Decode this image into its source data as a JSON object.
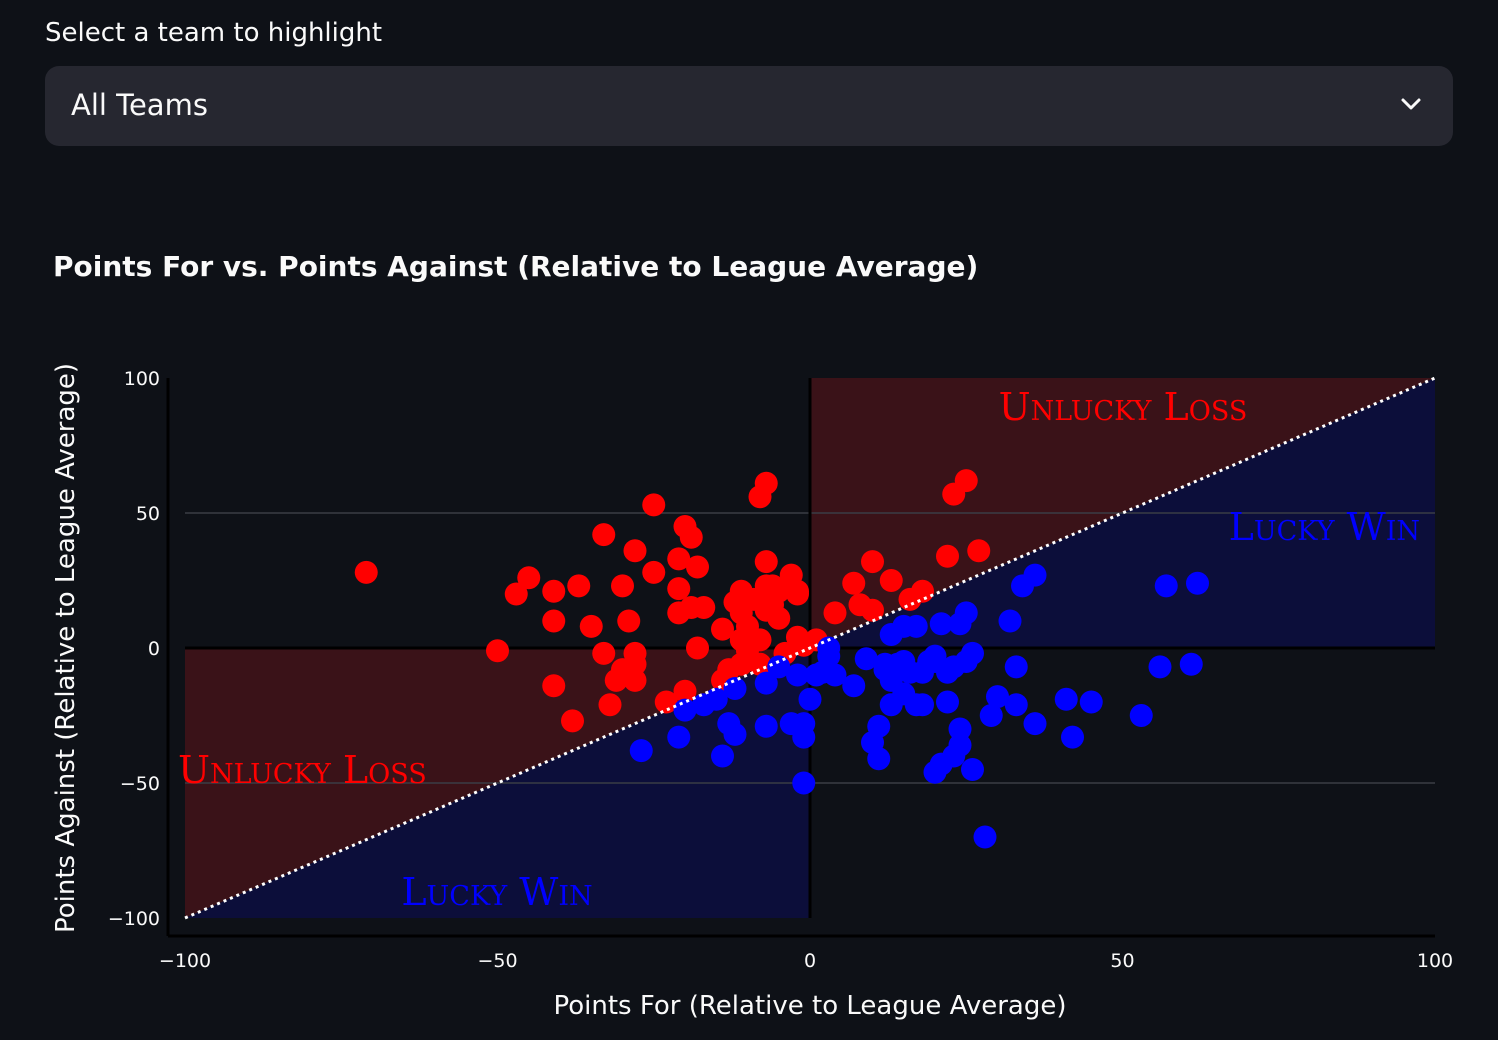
{
  "select": {
    "label": "Select a team to highlight",
    "value": "All Teams",
    "icon": "chevron-down-icon"
  },
  "chart_data": {
    "type": "scatter",
    "title": "Points For vs. Points Against (Relative to League Average)",
    "xlabel": "Points For (Relative to League Average)",
    "ylabel": "Points Against (Relative to League Average)",
    "xlim": [
      -100,
      100
    ],
    "ylim": [
      -100,
      100
    ],
    "xticks": [
      -100,
      -50,
      0,
      50,
      100
    ],
    "yticks": [
      -100,
      -50,
      0,
      50,
      100
    ],
    "tick_labels_x": [
      "−100",
      "−50",
      "0",
      "50",
      "100"
    ],
    "tick_labels_y": [
      "−100",
      "−50",
      "0",
      "50",
      "100"
    ],
    "grid": true,
    "diagonal_line": "y = x (dotted)",
    "regions": [
      {
        "label": "Unlucky Loss",
        "color": "#ff0000"
      },
      {
        "label": "Lucky Win",
        "color": "#0000ff"
      },
      {
        "label": "Unlucky Loss",
        "color": "#ff0000"
      },
      {
        "label": "Lucky Win",
        "color": "#0000ff"
      }
    ],
    "colors": {
      "loss": "#ff0000",
      "win": "#0000ff",
      "loss_region": "#3a1218",
      "win_region": "#0c0e3a",
      "background": "#0e1117"
    },
    "series": [
      {
        "color": "#ff0000",
        "points": [
          [
            -71,
            28
          ],
          [
            -50,
            -1
          ],
          [
            -47,
            20
          ],
          [
            -45,
            26
          ],
          [
            -41,
            21
          ],
          [
            -41,
            10
          ],
          [
            -41,
            -14
          ],
          [
            -38,
            -27
          ],
          [
            -37,
            23
          ],
          [
            -35,
            8
          ],
          [
            -33,
            -2
          ],
          [
            -33,
            42
          ],
          [
            -32,
            -21
          ],
          [
            -31,
            -12
          ],
          [
            -30,
            -8
          ],
          [
            -30,
            23
          ],
          [
            -29,
            10
          ],
          [
            -28,
            -12
          ],
          [
            -28,
            -6
          ],
          [
            -28,
            -2
          ],
          [
            -28,
            36
          ],
          [
            -25,
            53
          ],
          [
            -25,
            28
          ],
          [
            -23,
            -20
          ],
          [
            -21,
            13
          ],
          [
            -21,
            22
          ],
          [
            -21,
            33
          ],
          [
            -20,
            45
          ],
          [
            -20,
            -16
          ],
          [
            -19,
            15
          ],
          [
            -19,
            41
          ],
          [
            -18,
            0
          ],
          [
            -18,
            30
          ],
          [
            -17,
            15
          ],
          [
            -14,
            -12
          ],
          [
            -14,
            7
          ],
          [
            -13,
            -8
          ],
          [
            -12,
            17
          ],
          [
            -11,
            -6
          ],
          [
            -11,
            13
          ],
          [
            -11,
            21
          ],
          [
            -11,
            3
          ],
          [
            -10,
            8
          ],
          [
            -10,
            -4
          ],
          [
            -10,
            -1
          ],
          [
            -9,
            18
          ],
          [
            -8,
            56
          ],
          [
            -8,
            -6
          ],
          [
            -8,
            3
          ],
          [
            -7,
            32
          ],
          [
            -7,
            61
          ],
          [
            -7,
            23
          ],
          [
            -7,
            14
          ],
          [
            -6,
            21
          ],
          [
            -6,
            16
          ],
          [
            -6,
            23
          ],
          [
            -5,
            11
          ],
          [
            -5,
            21
          ],
          [
            -4,
            -2
          ],
          [
            -3,
            27
          ],
          [
            -2,
            4
          ],
          [
            -2,
            21
          ],
          [
            -2,
            20
          ],
          [
            -1,
            1
          ],
          [
            1,
            3
          ],
          [
            4,
            13
          ],
          [
            7,
            24
          ],
          [
            8,
            16
          ],
          [
            10,
            32
          ],
          [
            10,
            14
          ],
          [
            13,
            25
          ],
          [
            16,
            18
          ],
          [
            18,
            21
          ],
          [
            22,
            34
          ],
          [
            23,
            57
          ],
          [
            25,
            62
          ],
          [
            27,
            36
          ]
        ]
      },
      {
        "color": "#0000ff",
        "points": [
          [
            -27,
            -38
          ],
          [
            -21,
            -33
          ],
          [
            -20,
            -23
          ],
          [
            -17,
            -21
          ],
          [
            -15,
            -19
          ],
          [
            -14,
            -40
          ],
          [
            -13,
            -28
          ],
          [
            -12,
            -32
          ],
          [
            -12,
            -15
          ],
          [
            -7,
            -13
          ],
          [
            -7,
            -29
          ],
          [
            -5,
            -7
          ],
          [
            -3,
            -28
          ],
          [
            -2,
            -10
          ],
          [
            -1,
            -28
          ],
          [
            -1,
            -33
          ],
          [
            -1,
            -50
          ],
          [
            0,
            -19
          ],
          [
            1,
            -10
          ],
          [
            2,
            -9
          ],
          [
            3,
            -3
          ],
          [
            3,
            0
          ],
          [
            4,
            -10
          ],
          [
            7,
            -14
          ],
          [
            9,
            -4
          ],
          [
            10,
            -35
          ],
          [
            11,
            -41
          ],
          [
            11,
            -29
          ],
          [
            12,
            -6
          ],
          [
            12,
            -8
          ],
          [
            13,
            -21
          ],
          [
            13,
            5
          ],
          [
            13,
            -12
          ],
          [
            14,
            -6
          ],
          [
            15,
            -5
          ],
          [
            15,
            8
          ],
          [
            15,
            -17
          ],
          [
            16,
            -9
          ],
          [
            17,
            8
          ],
          [
            17,
            -21
          ],
          [
            18,
            -9
          ],
          [
            18,
            -21
          ],
          [
            19,
            -5
          ],
          [
            20,
            -46
          ],
          [
            20,
            -5
          ],
          [
            20,
            -3
          ],
          [
            21,
            -43
          ],
          [
            21,
            9
          ],
          [
            22,
            -9
          ],
          [
            22,
            -20
          ],
          [
            23,
            -7
          ],
          [
            23,
            -40
          ],
          [
            24,
            -36
          ],
          [
            24,
            9
          ],
          [
            24,
            -30
          ],
          [
            25,
            -5
          ],
          [
            25,
            13
          ],
          [
            26,
            -45
          ],
          [
            26,
            -2
          ],
          [
            28,
            -70
          ],
          [
            29,
            -25
          ],
          [
            30,
            -18
          ],
          [
            32,
            10
          ],
          [
            33,
            -7
          ],
          [
            33,
            -21
          ],
          [
            34,
            23
          ],
          [
            36,
            27
          ],
          [
            36,
            -28
          ],
          [
            41,
            -19
          ],
          [
            42,
            -33
          ],
          [
            45,
            -20
          ],
          [
            53,
            -25
          ],
          [
            56,
            -7
          ],
          [
            57,
            23
          ],
          [
            61,
            -6
          ],
          [
            62,
            24
          ]
        ]
      }
    ]
  }
}
